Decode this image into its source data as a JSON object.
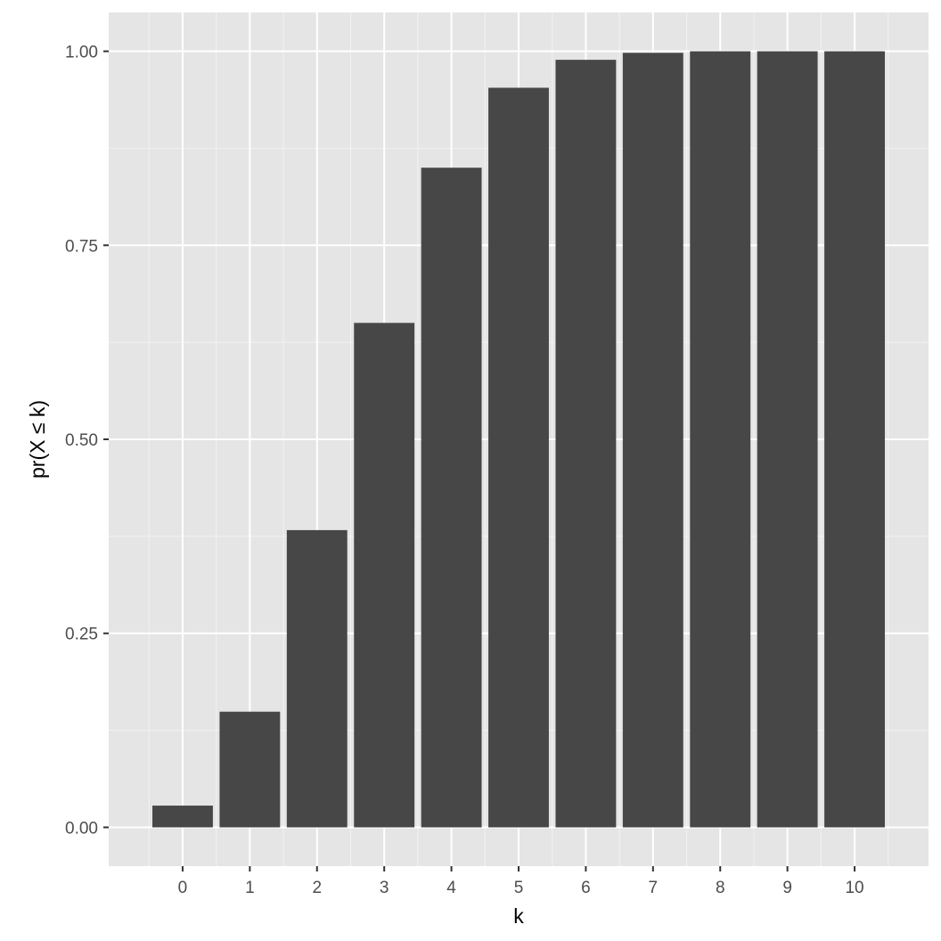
{
  "colors": {
    "panel_background": "#e5e5e5",
    "grid_major": "#ffffff",
    "grid_minor": "#f2f2f2",
    "bar_fill": "#474747",
    "tick_text": "#4d4d4d",
    "tick_mark": "#333333"
  },
  "chart_data": {
    "type": "bar",
    "title": "",
    "xlabel": "k",
    "ylabel": "pr(X ≤ k)",
    "categories": [
      "0",
      "1",
      "2",
      "3",
      "4",
      "5",
      "6",
      "7",
      "8",
      "9",
      "10"
    ],
    "values": [
      0.028,
      0.149,
      0.383,
      0.65,
      0.85,
      0.953,
      0.989,
      0.998,
      1.0,
      1.0,
      1.0
    ],
    "ylim": [
      -0.05,
      1.05
    ],
    "yticks": [
      0.0,
      0.25,
      0.5,
      0.75,
      1.0
    ],
    "ytick_labels": [
      "0.00",
      "0.25",
      "0.50",
      "0.75",
      "1.00"
    ],
    "grid": true,
    "legend": "none"
  }
}
